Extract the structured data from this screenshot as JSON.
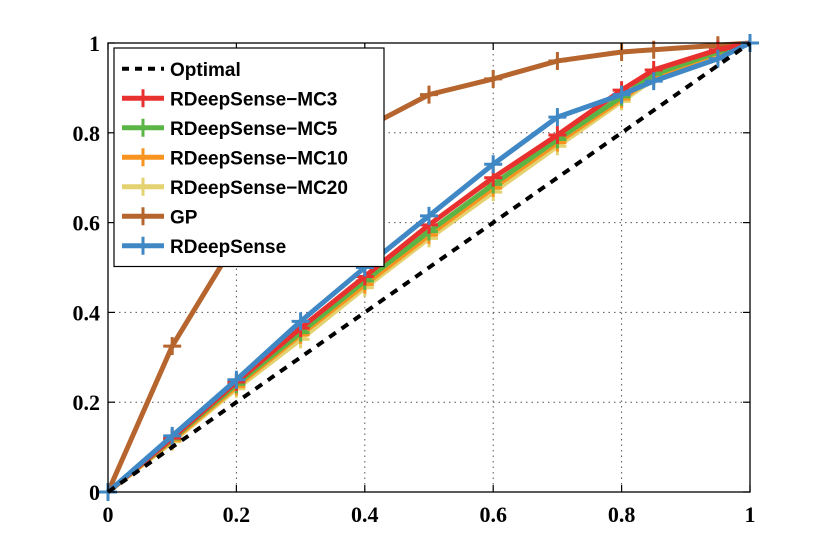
{
  "chart_data": {
    "type": "line",
    "title": "",
    "xlabel": "",
    "ylabel": "",
    "xlim": [
      0,
      1
    ],
    "ylim": [
      0,
      1
    ],
    "x_ticks": [
      0,
      0.2,
      0.4,
      0.6,
      0.8,
      1
    ],
    "y_ticks": [
      0,
      0.2,
      0.4,
      0.6,
      0.8,
      1
    ],
    "x_tick_labels": [
      "0",
      "0.2",
      "0.4",
      "0.6",
      "0.8",
      "1"
    ],
    "y_tick_labels": [
      "0",
      "0.2",
      "0.4",
      "0.6",
      "0.8",
      "1"
    ],
    "grid": true,
    "legend_position": "top-left",
    "series": [
      {
        "name": "Optimal",
        "color": "#000000",
        "style": "dashed",
        "marker": "none",
        "x": [
          0,
          1
        ],
        "y": [
          0,
          1
        ]
      },
      {
        "name": "RDeepSense−MC3",
        "color": "#e8312f",
        "style": "solid",
        "marker": "plus",
        "x": [
          0,
          0.1,
          0.2,
          0.3,
          0.4,
          0.5,
          0.6,
          0.7,
          0.8,
          0.85,
          0.95,
          1
        ],
        "y": [
          0,
          0.12,
          0.245,
          0.365,
          0.48,
          0.595,
          0.7,
          0.795,
          0.895,
          0.94,
          0.985,
          1
        ]
      },
      {
        "name": "RDeepSense−MC5",
        "color": "#5bb446",
        "style": "solid",
        "marker": "plus",
        "x": [
          0,
          0.1,
          0.2,
          0.3,
          0.4,
          0.5,
          0.6,
          0.7,
          0.8,
          0.85,
          0.95,
          1
        ],
        "y": [
          0,
          0.118,
          0.24,
          0.355,
          0.47,
          0.58,
          0.685,
          0.785,
          0.88,
          0.93,
          0.98,
          1
        ]
      },
      {
        "name": "RDeepSense−MC10",
        "color": "#f7931e",
        "style": "solid",
        "marker": "plus",
        "x": [
          0,
          0.1,
          0.2,
          0.3,
          0.4,
          0.5,
          0.6,
          0.7,
          0.8,
          0.85,
          0.95,
          1
        ],
        "y": [
          0,
          0.115,
          0.235,
          0.35,
          0.462,
          0.572,
          0.677,
          0.778,
          0.875,
          0.925,
          0.978,
          1
        ]
      },
      {
        "name": "RDeepSense−MC20",
        "color": "#e3d26f",
        "style": "solid",
        "marker": "plus",
        "x": [
          0,
          0.1,
          0.2,
          0.3,
          0.4,
          0.5,
          0.6,
          0.7,
          0.8,
          0.85,
          0.95,
          1
        ],
        "y": [
          0,
          0.112,
          0.23,
          0.34,
          0.455,
          0.565,
          0.668,
          0.77,
          0.87,
          0.92,
          0.975,
          1
        ]
      },
      {
        "name": "GP",
        "color": "#b5652d",
        "style": "solid",
        "marker": "plus",
        "x": [
          0,
          0.1,
          0.2,
          0.3,
          0.4,
          0.5,
          0.6,
          0.7,
          0.8,
          0.85,
          0.95,
          1
        ],
        "y": [
          0,
          0.325,
          0.56,
          0.715,
          0.81,
          0.885,
          0.92,
          0.96,
          0.98,
          0.985,
          0.995,
          1
        ]
      },
      {
        "name": "RDeepSense",
        "color": "#3f88c5",
        "style": "solid",
        "marker": "plus",
        "x": [
          0,
          0.1,
          0.2,
          0.3,
          0.4,
          0.5,
          0.6,
          0.7,
          0.8,
          0.85,
          0.95,
          1
        ],
        "y": [
          0,
          0.125,
          0.25,
          0.38,
          0.5,
          0.615,
          0.73,
          0.835,
          0.885,
          0.915,
          0.965,
          1
        ]
      }
    ]
  }
}
